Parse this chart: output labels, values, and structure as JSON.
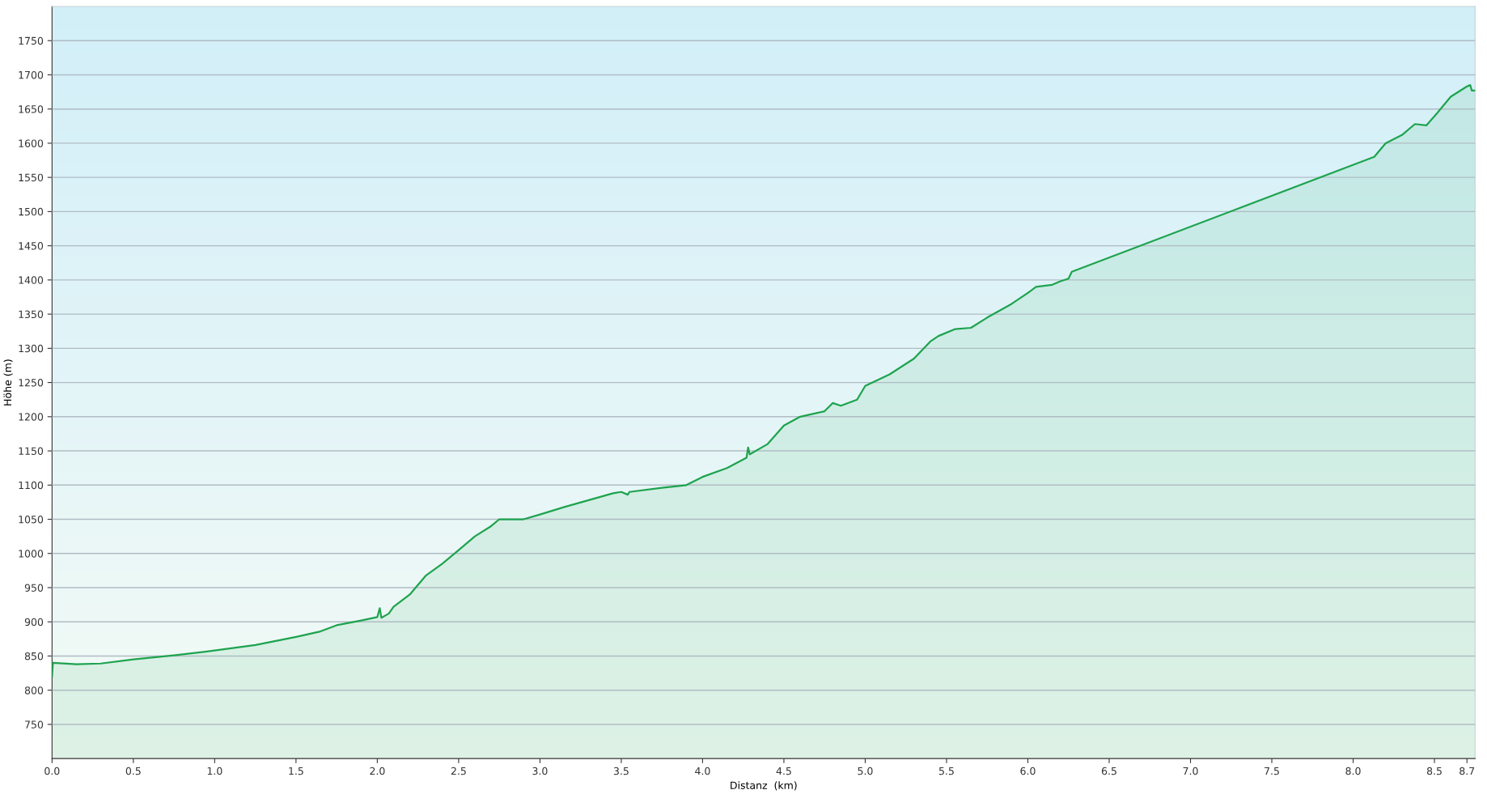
{
  "chart_data": {
    "type": "area",
    "xlabel": "Distanz  (km)",
    "ylabel": "Höhe (m)",
    "x": [
      0.0,
      0.005,
      0.15,
      0.3,
      0.5,
      0.75,
      1.0,
      1.25,
      1.5,
      1.65,
      1.75,
      1.9,
      2.0,
      2.015,
      2.025,
      2.07,
      2.1,
      2.2,
      2.3,
      2.4,
      2.5,
      2.6,
      2.7,
      2.75,
      2.9,
      3.0,
      3.15,
      3.3,
      3.45,
      3.5,
      3.54,
      3.55,
      3.75,
      3.9,
      4.0,
      4.15,
      4.27,
      4.28,
      4.29,
      4.4,
      4.5,
      4.6,
      4.75,
      4.8,
      4.85,
      4.95,
      5.0,
      5.15,
      5.3,
      5.4,
      5.45,
      5.55,
      5.65,
      5.75,
      5.9,
      6.0,
      6.05,
      6.15,
      6.2,
      6.25,
      6.27,
      8.13,
      8.2,
      8.3,
      8.38,
      8.45,
      8.52,
      8.6,
      8.7,
      8.72,
      8.73,
      8.75
    ],
    "series": [
      {
        "color": "#1ea34e",
        "values": [
          820,
          840,
          838,
          839,
          845,
          851,
          858,
          866,
          878,
          886,
          895,
          902,
          907,
          920,
          906,
          912,
          922,
          940,
          968,
          985,
          1005,
          1025,
          1040,
          1050,
          1050,
          1057,
          1068,
          1078,
          1088,
          1090,
          1086,
          1090,
          1096,
          1100,
          1112,
          1125,
          1140,
          1155,
          1145,
          1160,
          1187,
          1200,
          1208,
          1220,
          1216,
          1225,
          1245,
          1262,
          1285,
          1310,
          1318,
          1328,
          1330,
          1345,
          1365,
          1381,
          1390,
          1393,
          1398,
          1402,
          1412,
          1580,
          1600,
          1612,
          1628,
          1626,
          1645,
          1668,
          1683,
          1685,
          1677,
          1677
        ]
      }
    ],
    "xlim": [
      0,
      8.75
    ],
    "xticks": [
      {
        "value": 0,
        "label": "0.0"
      },
      0.5,
      {
        "value": 1,
        "label": "1.0"
      },
      1.5,
      {
        "value": 2,
        "label": "2.0"
      },
      2.5,
      {
        "value": 3,
        "label": "3.0"
      },
      3.5,
      {
        "value": 4,
        "label": "4.0"
      },
      4.5,
      {
        "value": 5,
        "label": "5.0"
      },
      5.5,
      {
        "value": 6,
        "label": "6.0"
      },
      6.5,
      {
        "value": 7,
        "label": "7.0"
      },
      7.5,
      {
        "value": 8,
        "label": "8.0"
      },
      8.5,
      8.7
    ],
    "ylim": [
      700,
      1800
    ],
    "yticks": [
      750,
      800,
      850,
      900,
      950,
      1000,
      1050,
      1100,
      1150,
      1200,
      1250,
      1300,
      1350,
      1400,
      1450,
      1500,
      1550,
      1600,
      1650,
      1700,
      1750
    ],
    "grid": "y",
    "legend": false
  }
}
